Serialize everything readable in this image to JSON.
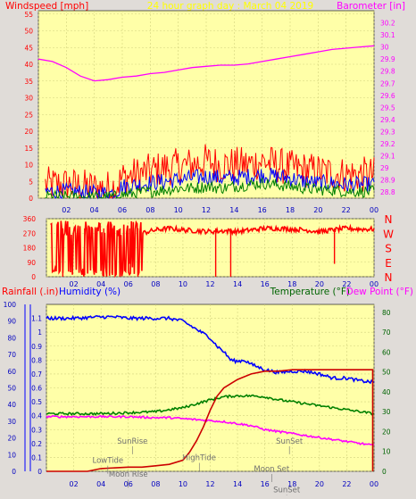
{
  "colors": {
    "background": "#e0dcd8",
    "plot_bg": "#ffffa8",
    "grid": "#d2d27e",
    "red": "#ff0000",
    "blue": "#0000ff",
    "green": "#008000",
    "magenta": "#ff00ff",
    "dark_red": "#cc0000",
    "yellow_text": "#ffff00",
    "axis_blue": "#0000c0",
    "axis_green": "#006400",
    "grey_text": "#707070"
  },
  "chart_data": [
    {
      "id": "wind",
      "type": "line",
      "title": "24 hour graph day : March 04 2019",
      "left_label": "Windspeed [mph]",
      "right_label": "Barometer [in]",
      "x_ticks": [
        "02",
        "04",
        "06",
        "08",
        "10",
        "12",
        "14",
        "16",
        "18",
        "20",
        "22",
        "00"
      ],
      "left_ticks": [
        "0",
        "5",
        "10",
        "15",
        "20",
        "25",
        "30",
        "35",
        "40",
        "45",
        "50",
        "55"
      ],
      "right_ticks": [
        "28.8",
        "28.9",
        "29",
        "29.1",
        "29.2",
        "29.3",
        "29.4",
        "29.5",
        "29.6",
        "29.7",
        "29.8",
        "29.9",
        "30",
        "30.1",
        "30.2"
      ],
      "ylim_left": [
        0,
        56
      ],
      "ylim_right": [
        28.75,
        30.3
      ],
      "series": [
        {
          "color": "#ff0000",
          "axis": "left",
          "x": [
            0.5,
            2,
            3,
            4,
            5,
            5.5,
            6,
            7,
            8,
            9,
            10,
            11,
            12,
            13,
            14,
            15,
            16,
            17,
            18,
            19,
            20,
            21,
            22,
            23,
            24
          ],
          "y": [
            4,
            4,
            3.5,
            3,
            3,
            3.5,
            6,
            7,
            8,
            9,
            9.5,
            10,
            11,
            10,
            10,
            10,
            11,
            10,
            9,
            8.5,
            8,
            7.5,
            7,
            7,
            7
          ],
          "jitter": 5.5
        },
        {
          "color": "#0000ff",
          "axis": "left",
          "x": [
            0.5,
            2,
            3,
            4,
            5,
            5.5,
            6,
            7,
            8,
            9,
            10,
            11,
            12,
            13,
            14,
            15,
            16,
            17,
            18,
            19,
            20,
            21,
            22,
            23,
            24
          ],
          "y": [
            2,
            2,
            1.8,
            1.5,
            1.5,
            1.8,
            3.5,
            4,
            4.5,
            5,
            5.5,
            6,
            6.5,
            6,
            6,
            6.5,
            7,
            6.5,
            6,
            5,
            4.5,
            4.5,
            4,
            4,
            4
          ],
          "jitter": 2.5
        },
        {
          "color": "#008000",
          "axis": "left",
          "x": [
            0.5,
            2,
            3,
            4,
            5,
            5.5,
            6,
            7,
            8,
            9,
            10,
            11,
            12,
            13,
            14,
            15,
            16,
            17,
            18,
            19,
            20,
            21,
            22,
            23,
            24
          ],
          "y": [
            0.5,
            0.5,
            0.5,
            0.3,
            0.3,
            0.5,
            1,
            1.5,
            2,
            2.5,
            3,
            3,
            3.5,
            3,
            3.5,
            4,
            4.5,
            4,
            3.5,
            3,
            2.5,
            2.5,
            2,
            2,
            2
          ],
          "jitter": 1.8
        },
        {
          "color": "#ff00ff",
          "axis": "right",
          "x": [
            0,
            1,
            2,
            3,
            4,
            5,
            6,
            7,
            8,
            9,
            10,
            11,
            12,
            13,
            14,
            15,
            16,
            17,
            18,
            19,
            20,
            21,
            22,
            23,
            24
          ],
          "y": [
            29.9,
            29.88,
            29.83,
            29.76,
            29.72,
            29.73,
            29.75,
            29.76,
            29.78,
            29.79,
            29.81,
            29.83,
            29.84,
            29.85,
            29.85,
            29.86,
            29.88,
            29.9,
            29.92,
            29.94,
            29.96,
            29.98,
            29.99,
            30.0,
            30.01
          ],
          "jitter": 0
        }
      ]
    },
    {
      "id": "direction",
      "type": "line",
      "left_ticks": [
        "0",
        "90",
        "180",
        "270",
        "360"
      ],
      "right_ticks": [
        "N",
        "W",
        "S",
        "E",
        "N"
      ],
      "x_ticks": [
        "02",
        "04",
        "06",
        "08",
        "10",
        "12",
        "14",
        "16",
        "18",
        "20",
        "22",
        "00"
      ],
      "ylim": [
        0,
        360
      ],
      "series": [
        {
          "color": "#ff0000",
          "x": [
            0.3,
            1,
            2,
            3,
            4,
            5,
            6,
            7,
            8,
            9,
            10,
            11,
            12,
            13,
            14,
            15,
            16,
            17,
            18,
            19,
            20,
            21,
            22,
            23,
            24
          ],
          "y": [
            30,
            60,
            150,
            250,
            260,
            200,
            280,
            270,
            290,
            300,
            290,
            285,
            280,
            285,
            280,
            290,
            300,
            300,
            295,
            290,
            280,
            290,
            300,
            295,
            295
          ],
          "jitter": 15
        }
      ],
      "spikes": [
        [
          0.6,
          300
        ],
        [
          1.2,
          0
        ],
        [
          2.8,
          10
        ],
        [
          3.6,
          30
        ],
        [
          4.2,
          0
        ],
        [
          4.8,
          20
        ],
        [
          5.4,
          10
        ],
        [
          6.1,
          80
        ],
        [
          6.7,
          0
        ],
        [
          12.4,
          0
        ],
        [
          13.5,
          0
        ],
        [
          21.1,
          80
        ]
      ]
    },
    {
      "id": "climate",
      "type": "line",
      "left_label_1": "Rainfall (.in)",
      "left_label_2": "Humidity (%)",
      "right_label_1": "Temperature (°F)",
      "right_label_2": "Dew Point (°F)",
      "x_ticks": [
        "02",
        "04",
        "06",
        "08",
        "10",
        "12",
        "14",
        "16",
        "18",
        "20",
        "22",
        "00"
      ],
      "humidity_ticks": [
        "0",
        "10",
        "20",
        "30",
        "40",
        "50",
        "60",
        "70",
        "80",
        "90",
        "100"
      ],
      "rain_ticks": [
        "0",
        "0.1",
        "0.2",
        "0.3",
        "0.4",
        "0.5",
        "0.6",
        "0.7",
        "0.8",
        "0.9",
        "1",
        "1.1"
      ],
      "temp_ticks": [
        "0",
        "10",
        "20",
        "30",
        "40",
        "50",
        "60",
        "70",
        "80"
      ],
      "ylim_rain": [
        0,
        1.2
      ],
      "ylim_temp": [
        0,
        84
      ],
      "series": [
        {
          "name": "Humidity (%)",
          "color": "#0000ff",
          "axis": "rain",
          "x": [
            0,
            2,
            4,
            5,
            6,
            7,
            8,
            9,
            10,
            11,
            12,
            12.5,
            13,
            13.5,
            14,
            14.5,
            15,
            16,
            17,
            18,
            19,
            20,
            21,
            22,
            23,
            24
          ],
          "y": [
            1.1,
            1.1,
            1.11,
            1.11,
            1.1,
            1.1,
            1.1,
            1.1,
            1.08,
            1.02,
            0.96,
            0.9,
            0.86,
            0.8,
            0.79,
            0.8,
            0.77,
            0.73,
            0.71,
            0.72,
            0.72,
            0.7,
            0.67,
            0.67,
            0.65,
            0.64
          ],
          "jitter": 0.012
        },
        {
          "name": "Temperature (°F)",
          "color": "#008000",
          "axis": "temp",
          "x": [
            0,
            2,
            4,
            6,
            8,
            9,
            10,
            11,
            12,
            13,
            14,
            15,
            16,
            17,
            18,
            19,
            20,
            21,
            22,
            23,
            24
          ],
          "y": [
            29,
            29,
            29,
            29.5,
            30,
            31,
            32,
            34,
            36,
            37.5,
            38,
            38,
            37.5,
            36,
            35,
            34,
            33,
            32,
            31,
            30,
            29
          ],
          "jitter": 0.6
        },
        {
          "name": "Dew Point (°F)",
          "color": "#ff00ff",
          "axis": "temp",
          "x": [
            0,
            2,
            4,
            6,
            8,
            9,
            10,
            11,
            12,
            13,
            14,
            15,
            16,
            17,
            18,
            19,
            20,
            21,
            22,
            23,
            24
          ],
          "y": [
            27.5,
            27.5,
            27.5,
            27.5,
            27,
            27,
            26.5,
            26,
            25.5,
            25,
            24,
            23,
            21,
            20,
            19,
            18,
            17,
            16,
            15,
            14,
            13
          ],
          "jitter": 0.5
        },
        {
          "name": "Rainfall (.in)",
          "color": "#cc0000",
          "axis": "rain",
          "x": [
            0,
            3,
            4,
            6,
            7,
            8,
            9,
            10,
            10.5,
            11,
            11.5,
            12,
            12.5,
            13,
            13.5,
            14,
            15,
            16,
            17,
            18,
            19,
            20,
            21,
            22,
            23,
            23.9,
            23.9
          ],
          "y": [
            0.0,
            0.0,
            0.02,
            0.03,
            0.03,
            0.04,
            0.05,
            0.08,
            0.14,
            0.22,
            0.32,
            0.44,
            0.54,
            0.6,
            0.63,
            0.66,
            0.7,
            0.72,
            0.72,
            0.73,
            0.73,
            0.73,
            0.73,
            0.73,
            0.73,
            0.73,
            0.0
          ],
          "jitter": 0
        }
      ],
      "annotations": [
        {
          "label": "SunRise",
          "x": 6.3,
          "y": 0.2
        },
        {
          "label": "LowTide",
          "x": 4.5,
          "y": 0.06
        },
        {
          "label": "Moon Rise",
          "x": 6.0,
          "y": -0.04
        },
        {
          "label": "HighTide",
          "x": 11.2,
          "y": 0.08
        },
        {
          "label": "SunSet",
          "x": 17.8,
          "y": 0.2
        },
        {
          "label": "Moon Set",
          "x": 16.5,
          "y": 0.0
        },
        {
          "label": "SunSet",
          "x": 17.6,
          "y": -0.15
        }
      ]
    }
  ]
}
